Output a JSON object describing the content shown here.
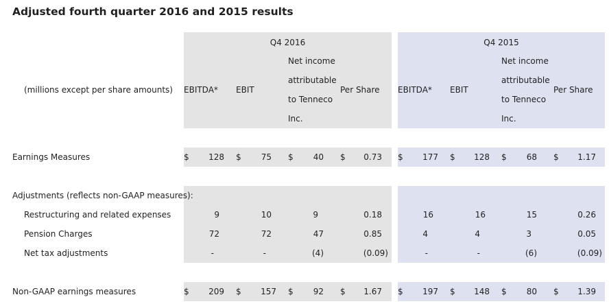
{
  "title": "Adjusted fourth quarter 2016 and 2015 results",
  "header": {
    "units": "(millions except per share amounts)",
    "q4_2016": "Q4 2016",
    "q4_2015": "Q4 2015",
    "ebitda": "EBITDA*",
    "ebit": "EBIT",
    "net_income": [
      "Net income",
      "attributable",
      "to Tenneco",
      "Inc."
    ],
    "per_share": "Per Share"
  },
  "currency": "$",
  "rows": {
    "earnings": {
      "label": "Earnings Measures",
      "q2016": [
        "128",
        "75",
        "40",
        "0.73"
      ],
      "q2015": [
        "177",
        "128",
        "68",
        "1.17"
      ]
    },
    "adjustments_heading": "Adjustments (reflects non-GAAP measures):",
    "restructuring": {
      "label": "Restructuring and related expenses",
      "q2016": [
        "9",
        "10",
        "9",
        "0.18"
      ],
      "q2015": [
        "16",
        "16",
        "15",
        "0.26"
      ]
    },
    "pension": {
      "label": "Pension Charges",
      "q2016": [
        "72",
        "72",
        "47",
        "0.85"
      ],
      "q2015": [
        "4",
        "4",
        "3",
        "0.05"
      ]
    },
    "net_tax": {
      "label": "Net tax adjustments",
      "q2016": [
        "-",
        "-",
        "(4)",
        "(0.09)"
      ],
      "q2015": [
        "-",
        "-",
        "(6)",
        "(0.09)"
      ]
    },
    "non_gaap": {
      "label": "Non-GAAP earnings measures",
      "q2016": [
        "209",
        "157",
        "92",
        "1.67"
      ],
      "q2015": [
        "197",
        "148",
        "80",
        "1.39"
      ]
    }
  }
}
